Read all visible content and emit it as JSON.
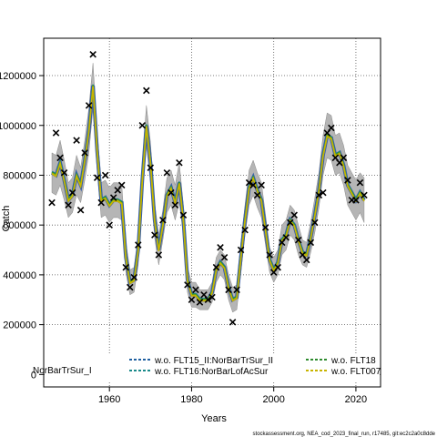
{
  "chart_data": {
    "type": "line",
    "title": "",
    "xlabel": "Years",
    "ylabel": "Catch",
    "xlim": [
      1944,
      2026
    ],
    "ylim": [
      -50000,
      1350000
    ],
    "x_ticks": [
      1960,
      1980,
      2000,
      2020
    ],
    "y_ticks": [
      0,
      200000,
      400000,
      600000,
      800000,
      1000000,
      1200000
    ],
    "y_tick_labels": [
      "0",
      "200000",
      "400000",
      "600000",
      "800000",
      "1000000",
      "1200000"
    ],
    "grid": true,
    "legend": {
      "placement": "bottom",
      "left_fragment": "NorBarTrSur_I",
      "entries": [
        {
          "name": "w.o. FLT15_II:NorBarTrSur_II",
          "color": "#1f5fa0",
          "style": "dashed"
        },
        {
          "name": "w.o. FLT16:NorBarLofAcSur",
          "color": "#1a8a8a",
          "style": "dashed"
        },
        {
          "name": "w.o. FLT18",
          "color": "#2e8b2e",
          "style": "dashed"
        },
        {
          "name": "w.o. FLT007",
          "color": "#c8b400",
          "style": "dashed"
        }
      ]
    },
    "footer": "stockassessment.org, NEA_cod_2023_final_run, r17485, git:ec2c2a0c8dde",
    "years": [
      1946,
      1947,
      1948,
      1949,
      1950,
      1951,
      1952,
      1953,
      1954,
      1955,
      1956,
      1957,
      1958,
      1959,
      1960,
      1961,
      1962,
      1963,
      1964,
      1965,
      1966,
      1967,
      1968,
      1969,
      1970,
      1971,
      1972,
      1973,
      1974,
      1975,
      1976,
      1977,
      1978,
      1979,
      1980,
      1981,
      1982,
      1983,
      1984,
      1985,
      1986,
      1987,
      1988,
      1989,
      1990,
      1991,
      1992,
      1993,
      1994,
      1995,
      1996,
      1997,
      1998,
      1999,
      2000,
      2001,
      2002,
      2003,
      2004,
      2005,
      2006,
      2007,
      2008,
      2009,
      2010,
      2011,
      2012,
      2013,
      2014,
      2015,
      2016,
      2017,
      2018,
      2019,
      2020,
      2021,
      2022
    ],
    "fitted": [
      810000,
      800000,
      850000,
      780000,
      700000,
      720000,
      800000,
      760000,
      860000,
      980000,
      1160000,
      900000,
      700000,
      710000,
      680000,
      700000,
      700000,
      690000,
      470000,
      370000,
      380000,
      500000,
      780000,
      1000000,
      850000,
      620000,
      500000,
      600000,
      720000,
      750000,
      690000,
      770000,
      620000,
      380000,
      320000,
      320000,
      300000,
      300000,
      300000,
      330000,
      420000,
      450000,
      430000,
      350000,
      300000,
      310000,
      470000,
      620000,
      750000,
      790000,
      740000,
      700000,
      580000,
      460000,
      420000,
      450000,
      540000,
      560000,
      620000,
      600000,
      540000,
      490000,
      480000,
      550000,
      640000,
      740000,
      880000,
      960000,
      950000,
      880000,
      890000,
      840000,
      760000,
      730000,
      700000,
      730000,
      700000
    ],
    "lower": [
      730000,
      720000,
      760000,
      700000,
      630000,
      650000,
      720000,
      690000,
      780000,
      890000,
      1070000,
      820000,
      630000,
      640000,
      610000,
      630000,
      630000,
      620000,
      410000,
      320000,
      330000,
      440000,
      710000,
      920000,
      770000,
      550000,
      440000,
      540000,
      650000,
      680000,
      620000,
      690000,
      560000,
      330000,
      270000,
      270000,
      260000,
      260000,
      260000,
      290000,
      370000,
      400000,
      380000,
      300000,
      250000,
      260000,
      410000,
      560000,
      680000,
      720000,
      670000,
      630000,
      520000,
      410000,
      370000,
      400000,
      480000,
      500000,
      560000,
      540000,
      480000,
      440000,
      430000,
      490000,
      570000,
      670000,
      800000,
      870000,
      860000,
      800000,
      810000,
      760000,
      680000,
      650000,
      620000,
      650000,
      610000
    ],
    "upper": [
      890000,
      880000,
      940000,
      860000,
      770000,
      790000,
      880000,
      830000,
      940000,
      1070000,
      1250000,
      980000,
      770000,
      780000,
      750000,
      770000,
      770000,
      760000,
      530000,
      420000,
      430000,
      560000,
      850000,
      1080000,
      930000,
      690000,
      560000,
      660000,
      790000,
      820000,
      760000,
      850000,
      680000,
      430000,
      370000,
      370000,
      340000,
      340000,
      340000,
      370000,
      470000,
      500000,
      480000,
      400000,
      350000,
      360000,
      530000,
      680000,
      820000,
      860000,
      810000,
      770000,
      640000,
      510000,
      470000,
      500000,
      600000,
      620000,
      680000,
      660000,
      600000,
      540000,
      530000,
      610000,
      710000,
      810000,
      960000,
      1050000,
      1040000,
      960000,
      970000,
      920000,
      840000,
      810000,
      780000,
      810000,
      790000
    ],
    "observed": [
      690000,
      970000,
      870000,
      810000,
      680000,
      730000,
      940000,
      660000,
      890000,
      1080000,
      1285000,
      790000,
      690000,
      800000,
      600000,
      710000,
      740000,
      760000,
      430000,
      350000,
      390000,
      520000,
      1000000,
      1140000,
      830000,
      560000,
      480000,
      620000,
      810000,
      730000,
      680000,
      850000,
      640000,
      360000,
      300000,
      340000,
      290000,
      320000,
      300000,
      310000,
      430000,
      510000,
      470000,
      340000,
      210000,
      340000,
      500000,
      580000,
      770000,
      760000,
      720000,
      760000,
      590000,
      480000,
      410000,
      430000,
      530000,
      550000,
      610000,
      640000,
      540000,
      480000,
      460000,
      530000,
      610000,
      720000,
      730000,
      970000,
      990000,
      870000,
      850000,
      870000,
      780000,
      700000,
      700000,
      770000,
      720000
    ]
  }
}
